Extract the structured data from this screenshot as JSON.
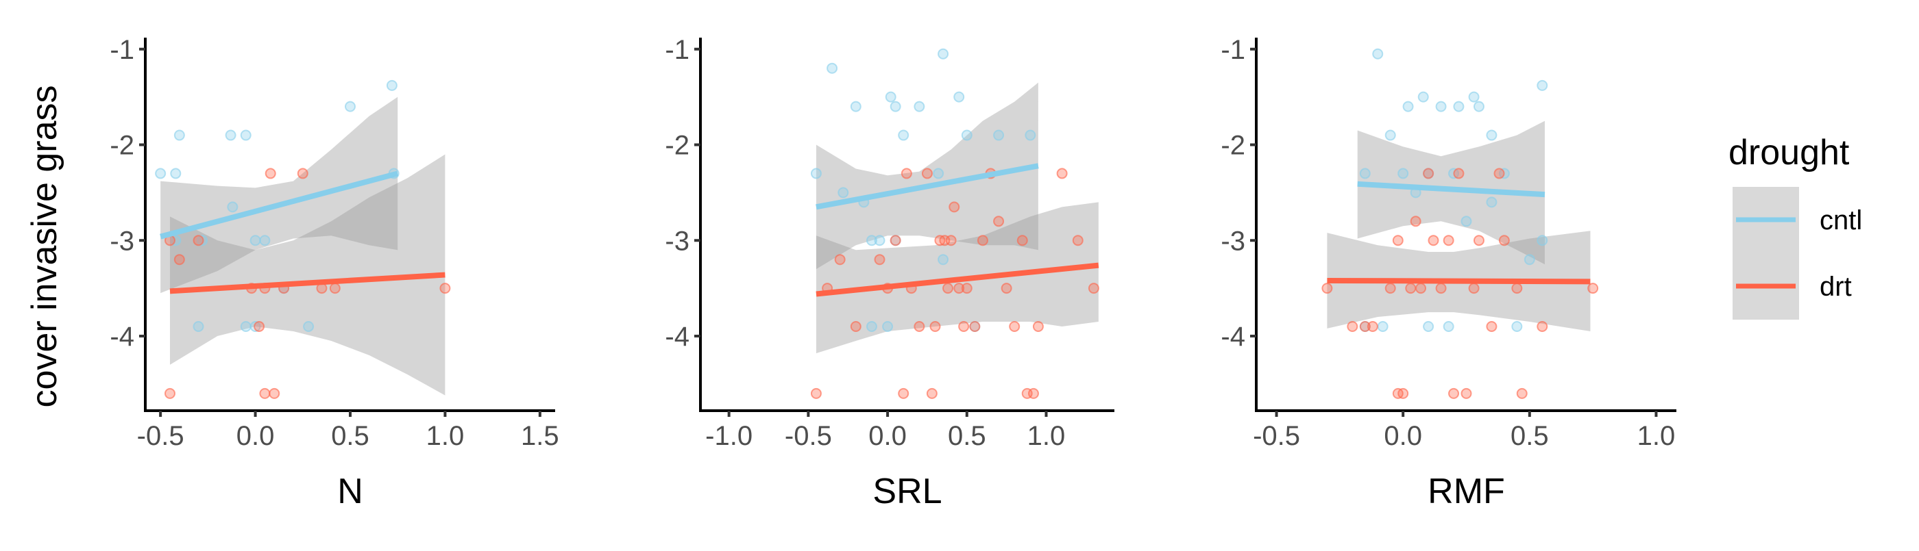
{
  "chart_data": [
    {
      "type": "scatter",
      "xlabel": "N",
      "ylabel": "cover invasive grass",
      "xlim": [
        -0.58,
        1.58
      ],
      "ylim": [
        -4.78,
        -0.88
      ],
      "xticks": [
        -0.5,
        0.0,
        0.5,
        1.0,
        1.5
      ],
      "xtick_labels": [
        "-0.5",
        "0.0",
        "0.5",
        "1.0",
        "1.5"
      ],
      "yticks": [
        -1,
        -2,
        -3,
        -4
      ],
      "ytick_labels": [
        "-1",
        "-2",
        "-3",
        "-4"
      ],
      "series": [
        {
          "name": "cntl",
          "points": [
            [
              -0.5,
              -2.3
            ],
            [
              -0.42,
              -2.3
            ],
            [
              -0.4,
              -1.9
            ],
            [
              -0.42,
              -3.0
            ],
            [
              -0.28,
              -3.0
            ],
            [
              -0.13,
              -1.9
            ],
            [
              -0.05,
              -1.9
            ],
            [
              -0.12,
              -2.65
            ],
            [
              0.0,
              -3.0
            ],
            [
              0.05,
              -3.0
            ],
            [
              0.0,
              -3.9
            ],
            [
              -0.05,
              -3.9
            ],
            [
              -0.3,
              -3.9
            ],
            [
              0.15,
              -3.5
            ],
            [
              0.28,
              -3.9
            ],
            [
              0.5,
              -1.6
            ],
            [
              0.72,
              -1.38
            ],
            [
              0.73,
              -2.3
            ]
          ],
          "fit": {
            "x": [
              -0.5,
              0.75
            ],
            "y": [
              -2.96,
              -2.3
            ]
          },
          "ci": {
            "x": [
              -0.5,
              -0.2,
              0.0,
              0.2,
              0.4,
              0.6,
              0.75
            ],
            "upper": [
              -2.38,
              -2.43,
              -2.45,
              -2.38,
              -2.05,
              -1.7,
              -1.5
            ],
            "lower": [
              -3.55,
              -3.32,
              -3.1,
              -2.98,
              -2.95,
              -3.05,
              -3.1
            ]
          }
        },
        {
          "name": "drt",
          "points": [
            [
              -0.45,
              -3.0
            ],
            [
              -0.4,
              -3.2
            ],
            [
              -0.45,
              -4.6
            ],
            [
              -0.3,
              -3.0
            ],
            [
              -0.02,
              -3.5
            ],
            [
              0.05,
              -3.5
            ],
            [
              0.08,
              -2.3
            ],
            [
              0.02,
              -3.9
            ],
            [
              0.05,
              -4.6
            ],
            [
              0.1,
              -4.6
            ],
            [
              0.15,
              -3.5
            ],
            [
              0.25,
              -2.3
            ],
            [
              0.35,
              -3.5
            ],
            [
              0.42,
              -3.5
            ],
            [
              1.0,
              -3.5
            ]
          ],
          "fit": {
            "x": [
              -0.45,
              1.0
            ],
            "y": [
              -3.53,
              -3.36
            ]
          },
          "ci": {
            "x": [
              -0.45,
              -0.2,
              0.0,
              0.2,
              0.4,
              0.6,
              0.8,
              1.0
            ],
            "upper": [
              -2.75,
              -3.0,
              -3.1,
              -3.0,
              -2.8,
              -2.55,
              -2.35,
              -2.1
            ],
            "lower": [
              -4.3,
              -4.0,
              -3.9,
              -3.95,
              -4.05,
              -4.2,
              -4.4,
              -4.62
            ]
          }
        }
      ]
    },
    {
      "type": "scatter",
      "xlabel": "SRL",
      "ylabel": "",
      "xlim": [
        -1.18,
        1.43
      ],
      "ylim": [
        -4.78,
        -0.88
      ],
      "xticks": [
        -1.0,
        -0.5,
        0.0,
        0.5,
        1.0
      ],
      "xtick_labels": [
        "-1.0",
        "-0.5",
        "0.0",
        "0.5",
        "1.0"
      ],
      "yticks": [
        -1,
        -2,
        -3,
        -4
      ],
      "ytick_labels": [
        "-1",
        "-2",
        "-3",
        "-4"
      ],
      "series": [
        {
          "name": "cntl",
          "points": [
            [
              -0.45,
              -2.3
            ],
            [
              -0.35,
              -1.2
            ],
            [
              -0.28,
              -2.5
            ],
            [
              -0.2,
              -1.6
            ],
            [
              -0.15,
              -2.6
            ],
            [
              -0.1,
              -3.0
            ],
            [
              -0.05,
              -3.0
            ],
            [
              0.02,
              -1.5
            ],
            [
              0.05,
              -1.6
            ],
            [
              0.1,
              -1.9
            ],
            [
              0.2,
              -1.6
            ],
            [
              0.32,
              -2.3
            ],
            [
              0.35,
              -1.05
            ],
            [
              0.35,
              -3.2
            ],
            [
              0.45,
              -1.5
            ],
            [
              0.5,
              -1.9
            ],
            [
              0.55,
              -3.9
            ],
            [
              0.7,
              -1.9
            ],
            [
              0.9,
              -1.9
            ],
            [
              0.05,
              -3.0
            ],
            [
              0.0,
              -3.9
            ],
            [
              -0.1,
              -3.9
            ]
          ],
          "fit": {
            "x": [
              -0.45,
              0.95
            ],
            "y": [
              -2.65,
              -2.22
            ]
          },
          "ci": {
            "x": [
              -0.45,
              -0.2,
              0.0,
              0.2,
              0.4,
              0.6,
              0.8,
              0.95
            ],
            "upper": [
              -2.0,
              -2.25,
              -2.32,
              -2.28,
              -2.05,
              -1.75,
              -1.55,
              -1.35
            ],
            "lower": [
              -3.3,
              -3.05,
              -2.95,
              -2.95,
              -3.0,
              -3.05,
              -3.05,
              -3.1
            ]
          }
        },
        {
          "name": "drt",
          "points": [
            [
              -0.45,
              -4.6
            ],
            [
              -0.38,
              -3.5
            ],
            [
              -0.3,
              -3.2
            ],
            [
              -0.2,
              -3.9
            ],
            [
              -0.05,
              -3.2
            ],
            [
              0.0,
              -3.5
            ],
            [
              0.05,
              -3.0
            ],
            [
              0.1,
              -4.6
            ],
            [
              0.12,
              -2.3
            ],
            [
              0.15,
              -3.5
            ],
            [
              0.2,
              -3.9
            ],
            [
              0.25,
              -2.3
            ],
            [
              0.28,
              -4.6
            ],
            [
              0.3,
              -3.9
            ],
            [
              0.33,
              -3.0
            ],
            [
              0.36,
              -3.0
            ],
            [
              0.38,
              -3.5
            ],
            [
              0.4,
              -3.0
            ],
            [
              0.42,
              -2.65
            ],
            [
              0.45,
              -3.5
            ],
            [
              0.48,
              -3.9
            ],
            [
              0.5,
              -3.5
            ],
            [
              0.55,
              -3.9
            ],
            [
              0.6,
              -3.0
            ],
            [
              0.65,
              -2.3
            ],
            [
              0.7,
              -2.8
            ],
            [
              0.75,
              -3.5
            ],
            [
              0.8,
              -3.9
            ],
            [
              0.85,
              -3.0
            ],
            [
              0.88,
              -4.6
            ],
            [
              0.92,
              -4.6
            ],
            [
              0.95,
              -3.9
            ],
            [
              1.1,
              -2.3
            ],
            [
              1.2,
              -3.0
            ],
            [
              1.3,
              -3.5
            ]
          ],
          "fit": {
            "x": [
              -0.45,
              1.33
            ],
            "y": [
              -3.56,
              -3.26
            ]
          },
          "ci": {
            "x": [
              -0.45,
              -0.2,
              0.0,
              0.3,
              0.6,
              0.9,
              1.1,
              1.33
            ],
            "upper": [
              -2.95,
              -3.1,
              -3.08,
              -3.05,
              -2.95,
              -2.75,
              -2.65,
              -2.6
            ],
            "lower": [
              -4.18,
              -4.05,
              -3.95,
              -3.9,
              -3.85,
              -3.85,
              -3.9,
              -3.85
            ]
          }
        }
      ]
    },
    {
      "type": "scatter",
      "xlabel": "RMF",
      "ylabel": "",
      "xlim": [
        -0.58,
        1.08
      ],
      "ylim": [
        -4.78,
        -0.88
      ],
      "xticks": [
        -0.5,
        0.0,
        0.5,
        1.0
      ],
      "xtick_labels": [
        "-0.5",
        "0.0",
        "0.5",
        "1.0"
      ],
      "yticks": [
        -1,
        -2,
        -3,
        -4
      ],
      "ytick_labels": [
        "-1",
        "-2",
        "-3",
        "-4"
      ],
      "series": [
        {
          "name": "cntl",
          "points": [
            [
              -0.1,
              -1.05
            ],
            [
              -0.05,
              -1.9
            ],
            [
              -0.08,
              -3.9
            ],
            [
              0.0,
              -2.3
            ],
            [
              0.02,
              -1.6
            ],
            [
              0.05,
              -2.5
            ],
            [
              0.08,
              -1.5
            ],
            [
              0.1,
              -2.3
            ],
            [
              0.15,
              -1.6
            ],
            [
              0.18,
              -3.9
            ],
            [
              0.2,
              -2.3
            ],
            [
              0.22,
              -1.6
            ],
            [
              0.25,
              -2.8
            ],
            [
              0.28,
              -1.5
            ],
            [
              0.3,
              -1.6
            ],
            [
              0.35,
              -1.9
            ],
            [
              0.4,
              -2.3
            ],
            [
              0.45,
              -3.9
            ],
            [
              0.5,
              -3.2
            ],
            [
              0.55,
              -1.38
            ],
            [
              0.55,
              -3.0
            ],
            [
              -0.15,
              -2.3
            ],
            [
              -0.15,
              -3.9
            ],
            [
              0.1,
              -3.9
            ],
            [
              0.35,
              -2.6
            ]
          ],
          "fit": {
            "x": [
              -0.18,
              0.56
            ],
            "y": [
              -2.41,
              -2.52
            ]
          },
          "ci": {
            "x": [
              -0.18,
              0.0,
              0.15,
              0.3,
              0.45,
              0.56
            ],
            "upper": [
              -1.85,
              -2.02,
              -2.12,
              -2.02,
              -1.9,
              -1.75
            ],
            "lower": [
              -2.98,
              -2.85,
              -2.8,
              -2.9,
              -3.1,
              -3.25
            ]
          }
        },
        {
          "name": "drt",
          "points": [
            [
              -0.3,
              -3.5
            ],
            [
              -0.2,
              -3.9
            ],
            [
              -0.15,
              -3.9
            ],
            [
              -0.12,
              -3.9
            ],
            [
              -0.05,
              -3.5
            ],
            [
              -0.02,
              -3.0
            ],
            [
              -0.02,
              -4.6
            ],
            [
              0.0,
              -4.6
            ],
            [
              0.03,
              -3.5
            ],
            [
              0.05,
              -2.8
            ],
            [
              0.07,
              -3.5
            ],
            [
              0.1,
              -2.3
            ],
            [
              0.12,
              -3.0
            ],
            [
              0.15,
              -3.5
            ],
            [
              0.18,
              -3.0
            ],
            [
              0.2,
              -4.6
            ],
            [
              0.22,
              -2.3
            ],
            [
              0.25,
              -4.6
            ],
            [
              0.28,
              -3.5
            ],
            [
              0.3,
              -3.0
            ],
            [
              0.35,
              -3.9
            ],
            [
              0.38,
              -2.3
            ],
            [
              0.4,
              -3.0
            ],
            [
              0.45,
              -3.5
            ],
            [
              0.47,
              -4.6
            ],
            [
              0.55,
              -3.9
            ],
            [
              0.75,
              -3.5
            ]
          ],
          "fit": {
            "x": [
              -0.3,
              0.74
            ],
            "y": [
              -3.42,
              -3.43
            ]
          },
          "ci": {
            "x": [
              -0.3,
              -0.1,
              0.1,
              0.2,
              0.3,
              0.5,
              0.74
            ],
            "upper": [
              -2.92,
              -3.05,
              -3.12,
              -3.12,
              -3.08,
              -2.98,
              -2.9
            ],
            "lower": [
              -3.92,
              -3.8,
              -3.75,
              -3.75,
              -3.78,
              -3.85,
              -3.95
            ]
          }
        }
      ]
    }
  ],
  "legend": {
    "title": "drought",
    "items": [
      {
        "label": "cntl",
        "color": "#87CEEB"
      },
      {
        "label": "drt",
        "color": "#FF6347"
      }
    ]
  },
  "colors": {
    "cntl": "#87CEEB",
    "drt": "#FF6347",
    "ribbon": "#999999"
  }
}
